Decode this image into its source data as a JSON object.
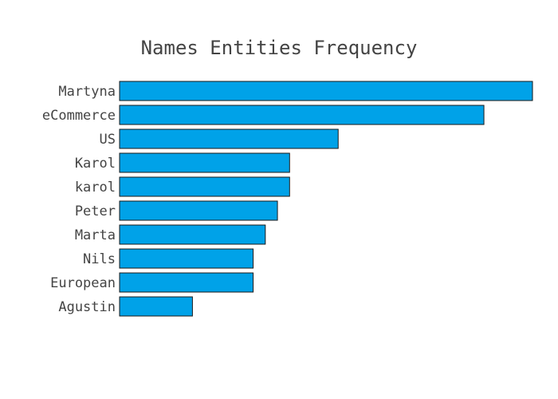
{
  "chart_data": {
    "type": "bar",
    "orientation": "horizontal",
    "title": "Names Entities Frequency",
    "xlabel": "",
    "ylabel": "",
    "categories": [
      "Martyna",
      "eCommerce",
      "US",
      "Karol",
      "karol",
      "Peter",
      "Marta",
      "Nils",
      "European",
      "Agustin"
    ],
    "values": [
      34,
      30,
      18,
      14,
      14,
      13,
      12,
      11,
      11,
      6
    ],
    "xlim": [
      0,
      34
    ],
    "grid": false,
    "legend": "none",
    "bar_color": "#00a2e8",
    "bar_outline": "#1a1a1a"
  }
}
